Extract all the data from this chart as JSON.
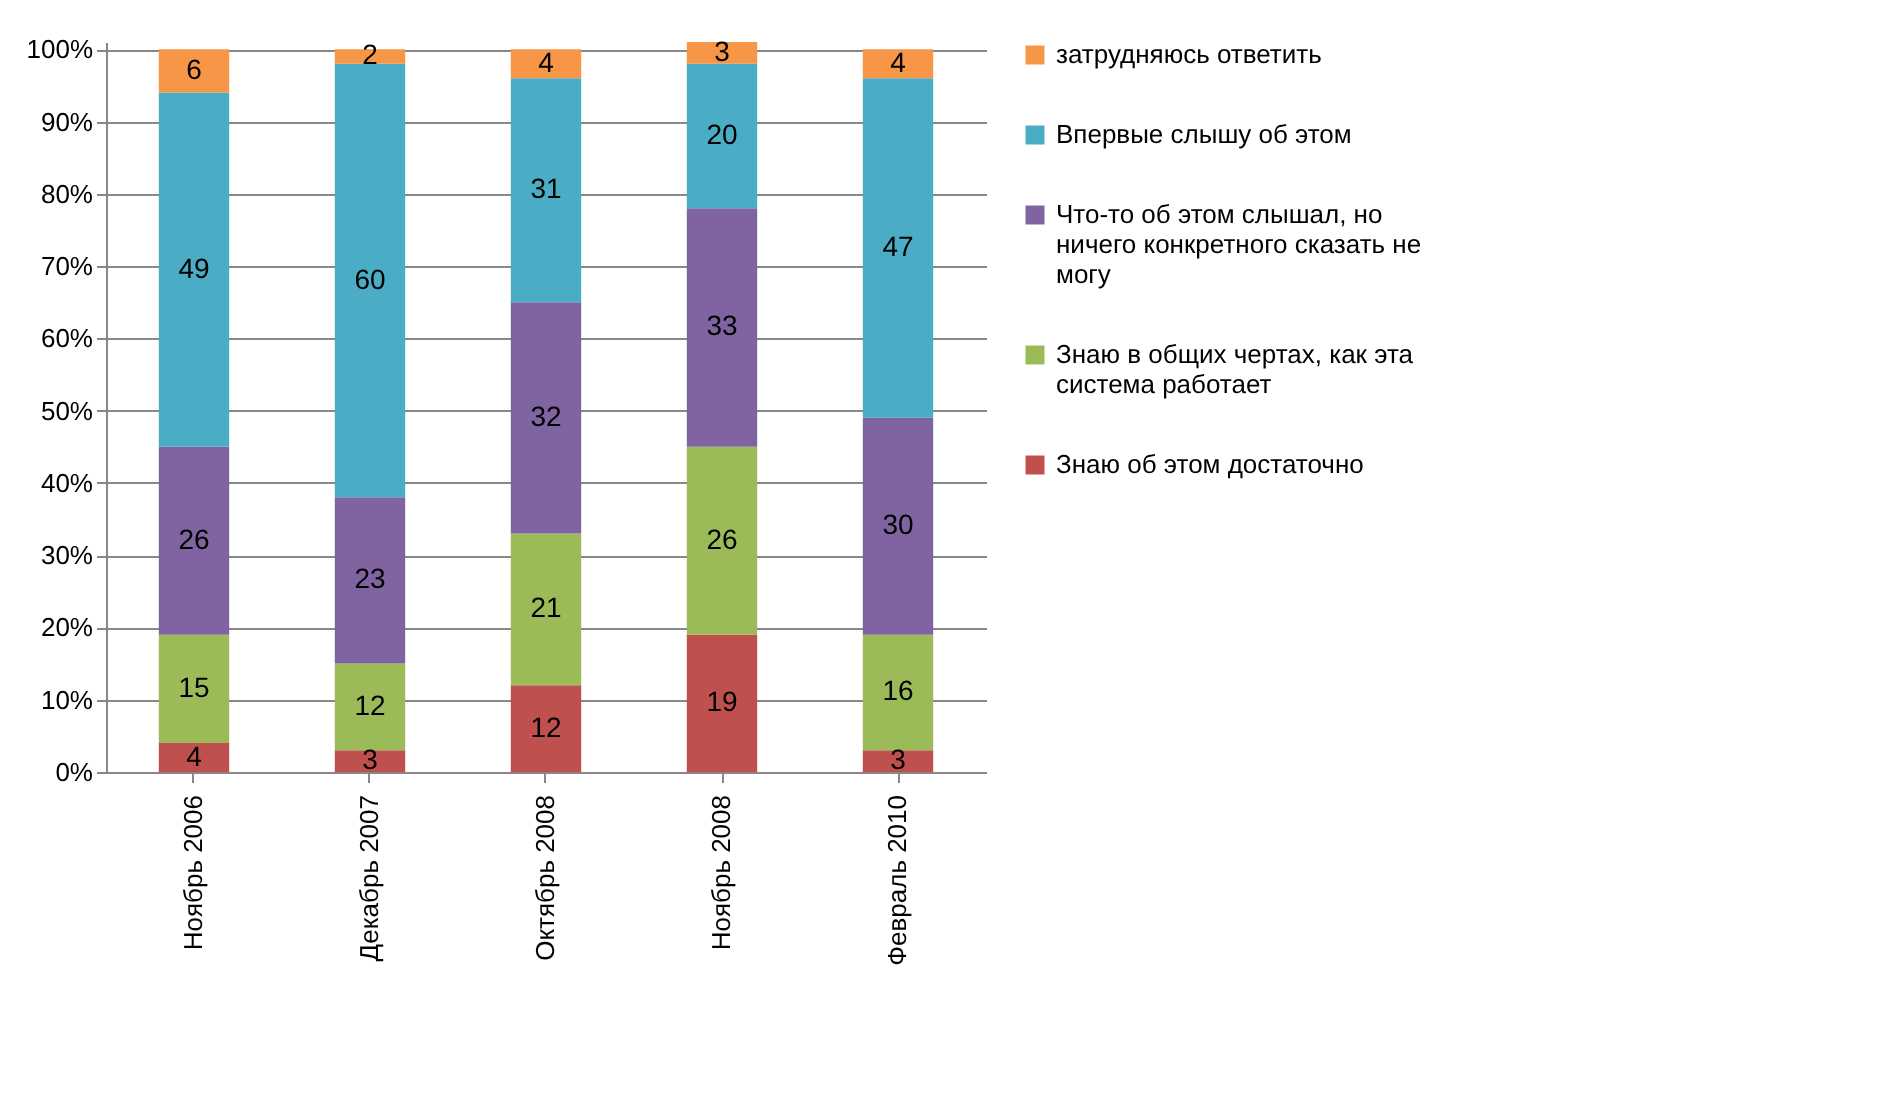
{
  "chart_data": {
    "type": "bar",
    "stacked": true,
    "data_labels": true,
    "grid": "y",
    "legend": "right",
    "categories": [
      "Ноябрь 2006",
      "Декабрь 2007",
      "Октябрь  2008",
      "Ноябрь  2008",
      "Февраль 2010"
    ],
    "ylim": [
      0,
      101
    ],
    "yticks": [
      {
        "value": 0,
        "label": "0%"
      },
      {
        "value": 10,
        "label": "10%"
      },
      {
        "value": 20,
        "label": "20%"
      },
      {
        "value": 30,
        "label": "30%"
      },
      {
        "value": 40,
        "label": "40%"
      },
      {
        "value": 50,
        "label": "50%"
      },
      {
        "value": 60,
        "label": "60%"
      },
      {
        "value": 70,
        "label": "70%"
      },
      {
        "value": 80,
        "label": "80%"
      },
      {
        "value": 90,
        "label": "90%"
      },
      {
        "value": 100,
        "label": "100%"
      }
    ],
    "series": [
      {
        "name": "Знаю об этом  достаточно",
        "color": "#c0504d",
        "values": [
          4,
          3,
          12,
          19,
          3
        ]
      },
      {
        "name": "Знаю в общих чертах, как эта система работает",
        "color": "#9bbb59",
        "values": [
          15,
          12,
          21,
          26,
          16
        ]
      },
      {
        "name": "Что-то об этом слышал, но ничего конкретного сказать не могу",
        "color": "#8064a2",
        "values": [
          26,
          23,
          32,
          33,
          30
        ]
      },
      {
        "name": "Впервые слышу об этом",
        "color": "#4bacc6",
        "values": [
          49,
          60,
          31,
          20,
          47
        ]
      },
      {
        "name": "затрудняюсь ответить",
        "color": "#f79646",
        "values": [
          6,
          2,
          4,
          3,
          4
        ]
      }
    ]
  }
}
